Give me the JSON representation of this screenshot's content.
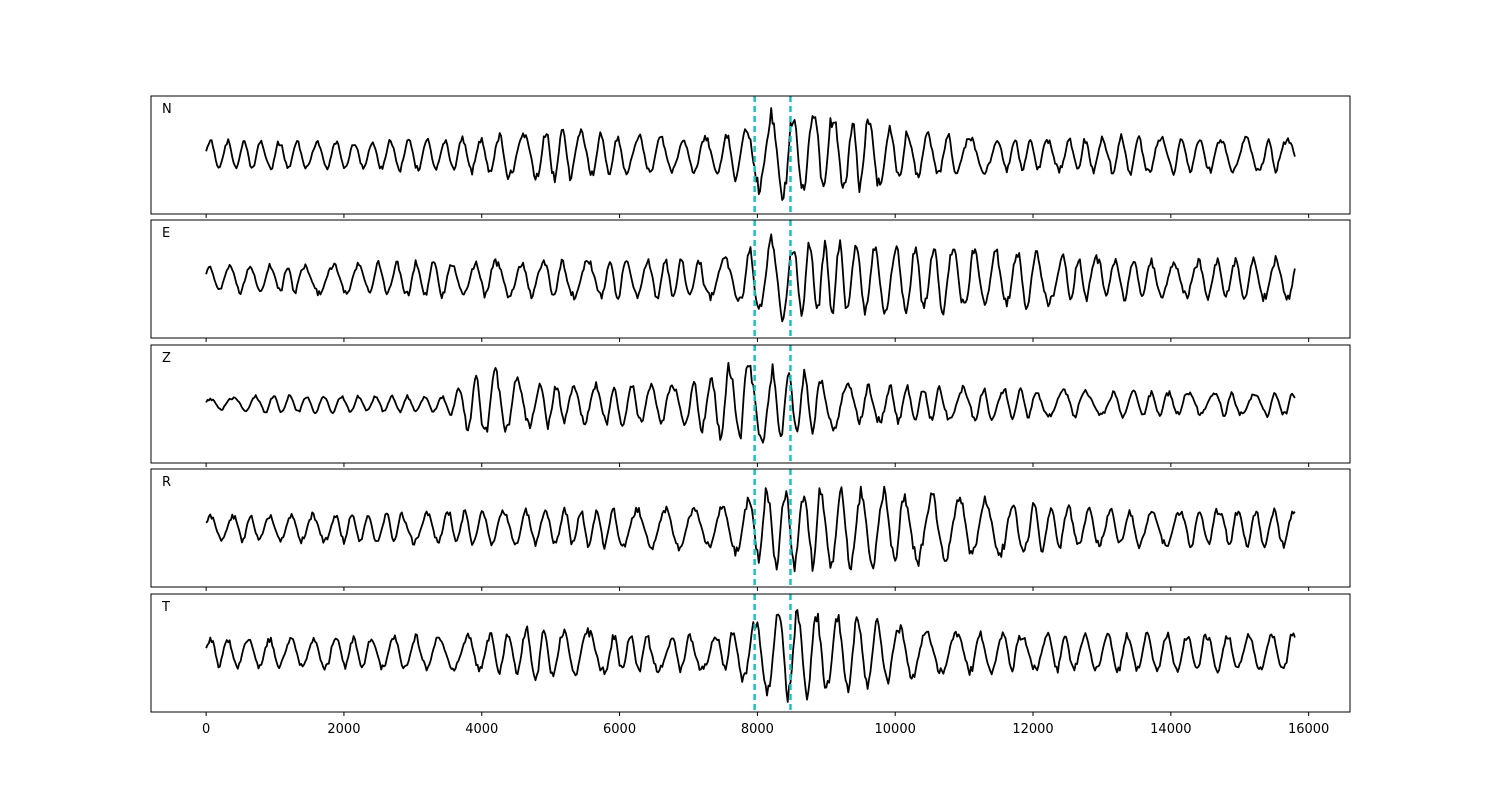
{
  "chart_data": {
    "type": "line",
    "title": "",
    "xlabel": "",
    "ylabel": "",
    "xlim": [
      -800,
      16600
    ],
    "x_ticks": [
      0,
      2000,
      4000,
      6000,
      8000,
      10000,
      12000,
      14000,
      16000
    ],
    "x_tick_labels": [
      "0",
      "2000",
      "4000",
      "6000",
      "8000",
      "10000",
      "12000",
      "14000",
      "16000"
    ],
    "sample_count": 15800,
    "grid": false,
    "legend": "none",
    "colors": {
      "trace": "#000000",
      "marker": "#1fbfbf",
      "frame": "#000000"
    },
    "vertical_markers": [
      {
        "x": 7960,
        "style": "dashed"
      },
      {
        "x": 8480,
        "style": "dashed"
      }
    ],
    "panels": [
      {
        "label": "N",
        "amplitude_envelope": [
          {
            "x": 0,
            "amp": 0.22
          },
          {
            "x": 2000,
            "amp": 0.22
          },
          {
            "x": 4000,
            "amp": 0.28
          },
          {
            "x": 4800,
            "amp": 0.42
          },
          {
            "x": 6000,
            "amp": 0.3
          },
          {
            "x": 7500,
            "amp": 0.28
          },
          {
            "x": 8300,
            "amp": 0.7
          },
          {
            "x": 9200,
            "amp": 0.62
          },
          {
            "x": 10500,
            "amp": 0.32
          },
          {
            "x": 12000,
            "amp": 0.24
          },
          {
            "x": 13500,
            "amp": 0.3
          },
          {
            "x": 15000,
            "amp": 0.26
          },
          {
            "x": 15800,
            "amp": 0.26
          }
        ]
      },
      {
        "label": "E",
        "amplitude_envelope": [
          {
            "x": 0,
            "amp": 0.2
          },
          {
            "x": 2000,
            "amp": 0.24
          },
          {
            "x": 4000,
            "amp": 0.28
          },
          {
            "x": 6000,
            "amp": 0.3
          },
          {
            "x": 7500,
            "amp": 0.3
          },
          {
            "x": 8200,
            "amp": 0.62
          },
          {
            "x": 9500,
            "amp": 0.52
          },
          {
            "x": 11000,
            "amp": 0.5
          },
          {
            "x": 12000,
            "amp": 0.4
          },
          {
            "x": 14000,
            "amp": 0.28
          },
          {
            "x": 15800,
            "amp": 0.32
          }
        ]
      },
      {
        "label": "Z",
        "amplitude_envelope": [
          {
            "x": 0,
            "amp": 0.08
          },
          {
            "x": 1000,
            "amp": 0.14
          },
          {
            "x": 3500,
            "amp": 0.12
          },
          {
            "x": 4000,
            "amp": 0.55
          },
          {
            "x": 5200,
            "amp": 0.3
          },
          {
            "x": 7000,
            "amp": 0.32
          },
          {
            "x": 7600,
            "amp": 0.6
          },
          {
            "x": 8500,
            "amp": 0.55
          },
          {
            "x": 9500,
            "amp": 0.3
          },
          {
            "x": 12000,
            "amp": 0.22
          },
          {
            "x": 14000,
            "amp": 0.18
          },
          {
            "x": 15800,
            "amp": 0.18
          }
        ]
      },
      {
        "label": "R",
        "amplitude_envelope": [
          {
            "x": 0,
            "amp": 0.2
          },
          {
            "x": 2000,
            "amp": 0.22
          },
          {
            "x": 4000,
            "amp": 0.26
          },
          {
            "x": 6000,
            "amp": 0.3
          },
          {
            "x": 7500,
            "amp": 0.32
          },
          {
            "x": 8200,
            "amp": 0.62
          },
          {
            "x": 9800,
            "amp": 0.58
          },
          {
            "x": 11500,
            "amp": 0.42
          },
          {
            "x": 13000,
            "amp": 0.28
          },
          {
            "x": 15800,
            "amp": 0.3
          }
        ]
      },
      {
        "label": "T",
        "amplitude_envelope": [
          {
            "x": 0,
            "amp": 0.22
          },
          {
            "x": 2000,
            "amp": 0.24
          },
          {
            "x": 4000,
            "amp": 0.28
          },
          {
            "x": 4800,
            "amp": 0.42
          },
          {
            "x": 6000,
            "amp": 0.3
          },
          {
            "x": 7500,
            "amp": 0.28
          },
          {
            "x": 8400,
            "amp": 0.72
          },
          {
            "x": 9200,
            "amp": 0.6
          },
          {
            "x": 10500,
            "amp": 0.34
          },
          {
            "x": 12000,
            "amp": 0.28
          },
          {
            "x": 13500,
            "amp": 0.3
          },
          {
            "x": 15800,
            "amp": 0.3
          }
        ]
      }
    ]
  }
}
